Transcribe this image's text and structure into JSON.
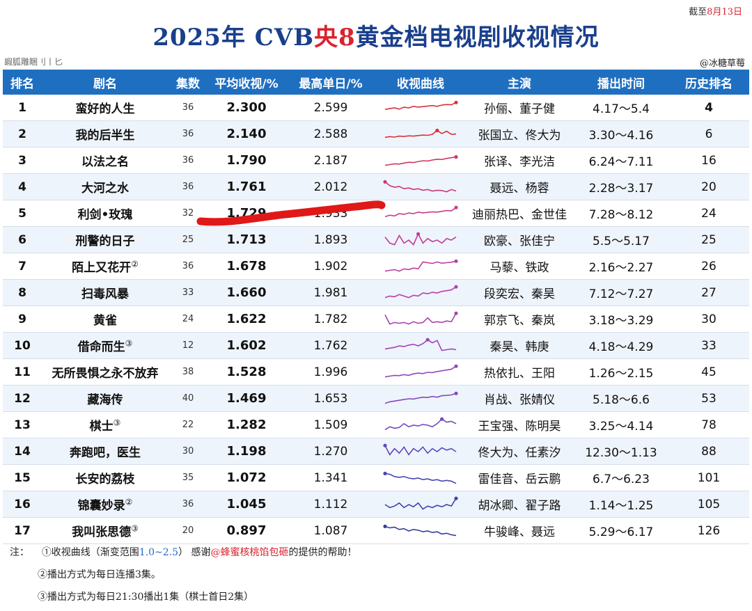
{
  "date_prefix": "截至",
  "date_value": "8月13日",
  "title_part1": "2025年 CVB",
  "title_red": "央8",
  "title_part2": "黄金档电视剧收视情况",
  "subline": "嘏胍雕睏刂丨匕",
  "credit": "@冰糖草莓",
  "headers": [
    "排名",
    "剧名",
    "集数",
    "平均收视/%",
    "最高单日/%",
    "收视曲线",
    "主演",
    "播出时间",
    "历史排名"
  ],
  "rows": [
    {
      "rank": "1",
      "name": "蛮好的人生",
      "eps": "36",
      "avg": "2.300",
      "peak": "2.599",
      "cast": "孙俪、董子健",
      "time": "4.17～5.4",
      "hist": "4",
      "bold_hist": true,
      "color": "#d8323a",
      "curve": [
        0.4,
        0.45,
        0.5,
        0.42,
        0.55,
        0.5,
        0.6,
        0.55,
        0.58,
        0.62,
        0.65,
        0.6,
        0.68,
        0.72,
        0.7,
        0.85
      ]
    },
    {
      "rank": "2",
      "name": "我的后半生",
      "eps": "36",
      "avg": "2.140",
      "peak": "2.588",
      "cast": "张国立、佟大为",
      "time": "3.30～4.16",
      "hist": "6",
      "color": "#d8323a",
      "curve": [
        0.3,
        0.35,
        0.32,
        0.38,
        0.36,
        0.4,
        0.38,
        0.42,
        0.45,
        0.43,
        0.5,
        0.75,
        0.55,
        0.7,
        0.5,
        0.52
      ]
    },
    {
      "rank": "3",
      "name": "以法之名",
      "eps": "36",
      "avg": "1.790",
      "peak": "2.187",
      "cast": "张译、李光洁",
      "time": "6.24～7.11",
      "hist": "16",
      "color": "#d1385c",
      "curve": [
        0.2,
        0.25,
        0.3,
        0.28,
        0.35,
        0.4,
        0.38,
        0.45,
        0.5,
        0.48,
        0.55,
        0.6,
        0.58,
        0.65,
        0.7,
        0.75
      ]
    },
    {
      "rank": "4",
      "name": "大河之水",
      "eps": "36",
      "avg": "1.761",
      "peak": "2.012",
      "cast": "聂远、杨蓉",
      "time": "2.28～3.17",
      "hist": "20",
      "color": "#c8387a",
      "curve": [
        0.85,
        0.6,
        0.5,
        0.55,
        0.4,
        0.45,
        0.35,
        0.4,
        0.3,
        0.35,
        0.25,
        0.3,
        0.28,
        0.2,
        0.35,
        0.25
      ]
    },
    {
      "rank": "5",
      "name": "利剑•玫瑰",
      "eps": "32",
      "avg": "1.729",
      "peak": "1.933",
      "cast": "迪丽热巴、金世佳",
      "time": "7.28～8.12",
      "hist": "24",
      "color": "#c83a8a",
      "curve": [
        0.3,
        0.4,
        0.35,
        0.5,
        0.45,
        0.55,
        0.5,
        0.6,
        0.55,
        0.58,
        0.62,
        0.6,
        0.65,
        0.7,
        0.68,
        0.9
      ]
    },
    {
      "rank": "6",
      "name": "刑警的日子",
      "eps": "25",
      "avg": "1.713",
      "peak": "1.893",
      "cast": "欧豪、张佳宁",
      "time": "5.5～5.17",
      "hist": "25",
      "color": "#c23c95",
      "curve": [
        0.7,
        0.3,
        0.2,
        0.8,
        0.3,
        0.5,
        0.2,
        0.9,
        0.3,
        0.6,
        0.4,
        0.5,
        0.3,
        0.6,
        0.5,
        0.7
      ]
    },
    {
      "rank": "7",
      "name": "陌上又花开",
      "sup": "②",
      "eps": "36",
      "avg": "1.678",
      "peak": "1.902",
      "cast": "马藜、铁政",
      "time": "2.16～2.27",
      "hist": "26",
      "color": "#bb3ea0",
      "curve": [
        0.2,
        0.25,
        0.3,
        0.2,
        0.35,
        0.3,
        0.4,
        0.35,
        0.8,
        0.75,
        0.7,
        0.8,
        0.72,
        0.75,
        0.78,
        0.85
      ]
    },
    {
      "rank": "8",
      "name": "扫毒风暴",
      "eps": "33",
      "avg": "1.660",
      "peak": "1.981",
      "cast": "段奕宏、秦昊",
      "time": "7.12～7.27",
      "hist": "27",
      "color": "#b540a8",
      "curve": [
        0.2,
        0.3,
        0.25,
        0.4,
        0.3,
        0.2,
        0.35,
        0.3,
        0.5,
        0.45,
        0.55,
        0.5,
        0.6,
        0.65,
        0.7,
        0.9
      ]
    },
    {
      "rank": "9",
      "name": "黄雀",
      "eps": "24",
      "avg": "1.622",
      "peak": "1.782",
      "cast": "郭京飞、秦岚",
      "time": "3.18～3.29",
      "hist": "30",
      "color": "#ab42b0",
      "curve": [
        0.8,
        0.2,
        0.3,
        0.25,
        0.3,
        0.2,
        0.35,
        0.25,
        0.3,
        0.6,
        0.3,
        0.35,
        0.3,
        0.4,
        0.35,
        0.9
      ]
    },
    {
      "rank": "10",
      "name": "借命而生",
      "sup": "③",
      "eps": "12",
      "avg": "1.602",
      "peak": "1.762",
      "cast": "秦昊、韩庚",
      "time": "4.18～4.29",
      "hist": "33",
      "color": "#a044b6",
      "curve": [
        0.3,
        0.35,
        0.4,
        0.5,
        0.45,
        0.55,
        0.6,
        0.5,
        0.65,
        0.9,
        0.7,
        0.85,
        0.2,
        0.25,
        0.3,
        0.25
      ]
    },
    {
      "rank": "11",
      "name": "无所畏惧之永不放弃",
      "eps": "38",
      "avg": "1.528",
      "peak": "1.996",
      "cast": "热依扎、王阳",
      "time": "1.26～2.15",
      "hist": "45",
      "color": "#9346bb",
      "curve": [
        0.2,
        0.25,
        0.3,
        0.28,
        0.35,
        0.3,
        0.4,
        0.45,
        0.42,
        0.5,
        0.48,
        0.55,
        0.6,
        0.65,
        0.7,
        0.9
      ]
    },
    {
      "rank": "12",
      "name": "藏海传",
      "eps": "40",
      "avg": "1.469",
      "peak": "1.653",
      "cast": "肖战、张婧仪",
      "time": "5.18～6.6",
      "hist": "53",
      "color": "#8548be",
      "curve": [
        0.2,
        0.3,
        0.35,
        0.4,
        0.45,
        0.5,
        0.48,
        0.55,
        0.6,
        0.58,
        0.65,
        0.6,
        0.7,
        0.72,
        0.75,
        0.85
      ]
    },
    {
      "rank": "13",
      "name": "棋士",
      "sup": "③",
      "eps": "22",
      "avg": "1.282",
      "peak": "1.509",
      "cast": "王宝强、陈明昊",
      "time": "3.25～4.14",
      "hist": "78",
      "color": "#7249bf",
      "curve": [
        0.2,
        0.4,
        0.3,
        0.35,
        0.6,
        0.4,
        0.5,
        0.45,
        0.55,
        0.5,
        0.4,
        0.6,
        0.9,
        0.7,
        0.75,
        0.6
      ]
    },
    {
      "rank": "14",
      "name": "奔跑吧，医生",
      "eps": "30",
      "avg": "1.198",
      "peak": "1.270",
      "cast": "佟大为、任素汐",
      "time": "12.30～1.13",
      "hist": "88",
      "color": "#5c48bc",
      "curve": [
        0.9,
        0.3,
        0.7,
        0.4,
        0.8,
        0.3,
        0.7,
        0.5,
        0.8,
        0.4,
        0.7,
        0.5,
        0.75,
        0.6,
        0.7,
        0.5
      ]
    },
    {
      "rank": "15",
      "name": "长安的荔枝",
      "eps": "35",
      "avg": "1.072",
      "peak": "1.341",
      "cast": "雷佳音、岳云鹏",
      "time": "6.7～6.23",
      "hist": "101",
      "color": "#4646b5",
      "curve": [
        0.8,
        0.75,
        0.6,
        0.55,
        0.6,
        0.5,
        0.45,
        0.5,
        0.4,
        0.45,
        0.35,
        0.4,
        0.3,
        0.35,
        0.3,
        0.15
      ]
    },
    {
      "rank": "16",
      "name": "锦囊妙录",
      "sup": "②",
      "eps": "36",
      "avg": "1.045",
      "peak": "1.112",
      "cast": "胡冰卿、翟子路",
      "time": "1.14～1.25",
      "hist": "105",
      "color": "#3a44ad",
      "curve": [
        0.5,
        0.3,
        0.4,
        0.6,
        0.3,
        0.5,
        0.35,
        0.6,
        0.2,
        0.4,
        0.3,
        0.45,
        0.35,
        0.5,
        0.4,
        0.9
      ]
    },
    {
      "rank": "17",
      "name": "我叫张思德",
      "sup": "③",
      "eps": "20",
      "avg": "0.897",
      "peak": "1.087",
      "cast": "牛骏峰、聂远",
      "time": "5.29～6.17",
      "hist": "126",
      "color": "#333f9f",
      "curve": [
        0.8,
        0.7,
        0.75,
        0.6,
        0.65,
        0.5,
        0.6,
        0.55,
        0.45,
        0.5,
        0.4,
        0.45,
        0.3,
        0.35,
        0.25,
        0.2
      ]
    }
  ],
  "notes": {
    "label": "注：",
    "n1_a": "①收视曲线（渐变范围",
    "n1_range": "1.0~2.5",
    "n1_b": "） 感谢",
    "n1_red": "@蜂蜜核桃馅包砸",
    "n1_c": "的提供的帮助！",
    "n2": "②播出方式为每日连播3集。",
    "n3": "③播出方式为每日21:30播出1集（棋士首日2集）"
  }
}
